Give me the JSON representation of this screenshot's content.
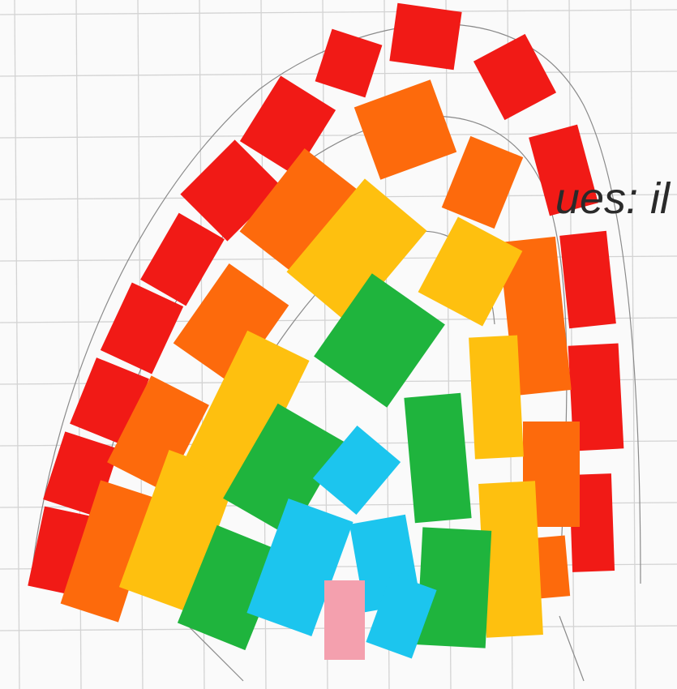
{
  "caption": {
    "text": "ues: il"
  },
  "colors": {
    "paper": "#fafafa",
    "grid": "#d3d3d3",
    "pencil": "#8a8a8a",
    "red": "#f11a16",
    "orange": "#fd6a0c",
    "yellow": "#fec00f",
    "green": "#1fb43d",
    "blue": "#1cc5ee",
    "pink": "#f4a0ae"
  }
}
